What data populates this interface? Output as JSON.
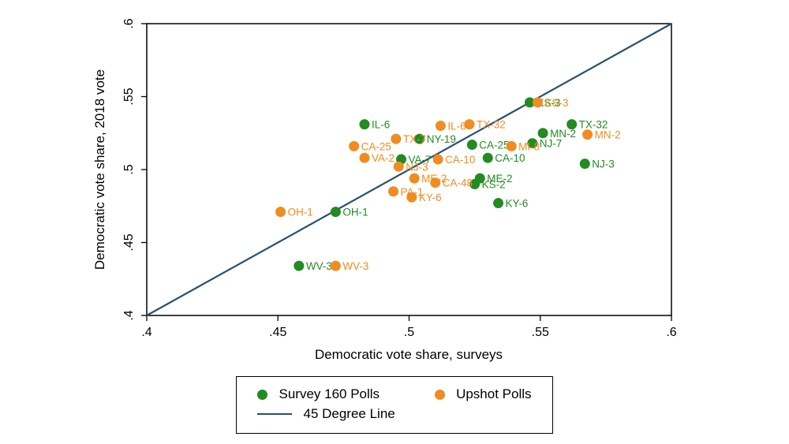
{
  "figure": {
    "background": "#ffffff",
    "axis_color": "#000000"
  },
  "chart_data": {
    "type": "scatter",
    "title": "",
    "xlabel": "Democratic vote share, surveys",
    "ylabel": "Democratic vote share, 2018 vote",
    "xlim": [
      0.4,
      0.6
    ],
    "ylim": [
      0.4,
      0.6
    ],
    "grid": false,
    "legend_position": "bottom-center",
    "ticks": {
      "values": [
        0.4,
        0.45,
        0.5,
        0.55,
        0.6
      ],
      "labels": [
        ".4",
        ".45",
        ".5",
        ".55",
        ".6"
      ]
    },
    "series": [
      {
        "name": "Survey 160 Polls",
        "color": "#228B22",
        "points": [
          {
            "label": "IL-6",
            "x": 0.483,
            "y": 0.531
          },
          {
            "label": "KS-3",
            "x": 0.546,
            "y": 0.546
          },
          {
            "label": "TX-32",
            "x": 0.562,
            "y": 0.531
          },
          {
            "label": "MN-2",
            "x": 0.551,
            "y": 0.525
          },
          {
            "label": "NJ-7",
            "x": 0.547,
            "y": 0.518
          },
          {
            "label": "NY-19",
            "x": 0.504,
            "y": 0.521
          },
          {
            "label": "CA-25",
            "x": 0.524,
            "y": 0.517
          },
          {
            "label": "VA-7",
            "x": 0.497,
            "y": 0.507
          },
          {
            "label": "CA-10",
            "x": 0.53,
            "y": 0.508
          },
          {
            "label": "NJ-3",
            "x": 0.567,
            "y": 0.504
          },
          {
            "label": "ME-2",
            "x": 0.527,
            "y": 0.494
          },
          {
            "label": "KS-2",
            "x": 0.525,
            "y": 0.49
          },
          {
            "label": "KY-6",
            "x": 0.534,
            "y": 0.477
          },
          {
            "label": "OH-1",
            "x": 0.472,
            "y": 0.471
          },
          {
            "label": "WV-3",
            "x": 0.458,
            "y": 0.434
          }
        ]
      },
      {
        "name": "Upshot Polls",
        "color": "#F08C21",
        "points": [
          {
            "label": "OH-1",
            "x": 0.451,
            "y": 0.471
          },
          {
            "label": "WV-3",
            "x": 0.472,
            "y": 0.434
          },
          {
            "label": "CA-25",
            "x": 0.479,
            "y": 0.516
          },
          {
            "label": "VA-2",
            "x": 0.483,
            "y": 0.508
          },
          {
            "label": "TX-7",
            "x": 0.495,
            "y": 0.521
          },
          {
            "label": "NJ-3",
            "x": 0.496,
            "y": 0.502
          },
          {
            "label": "PA-1",
            "x": 0.494,
            "y": 0.485
          },
          {
            "label": "KY-6",
            "x": 0.501,
            "y": 0.481
          },
          {
            "label": "ME-2",
            "x": 0.502,
            "y": 0.494
          },
          {
            "label": "CA-48",
            "x": 0.51,
            "y": 0.491
          },
          {
            "label": "CA-10",
            "x": 0.511,
            "y": 0.507
          },
          {
            "label": "IL-6",
            "x": 0.512,
            "y": 0.53
          },
          {
            "label": "TX-32",
            "x": 0.523,
            "y": 0.531
          },
          {
            "label": "MI-8",
            "x": 0.539,
            "y": 0.516
          },
          {
            "label": "KS-3",
            "x": 0.549,
            "y": 0.546
          },
          {
            "label": "MN-2",
            "x": 0.568,
            "y": 0.524
          }
        ]
      }
    ],
    "line": {
      "name": "45 Degree Line",
      "color": "#26506F",
      "from": [
        0.4,
        0.4
      ],
      "to": [
        0.6,
        0.6
      ]
    }
  }
}
